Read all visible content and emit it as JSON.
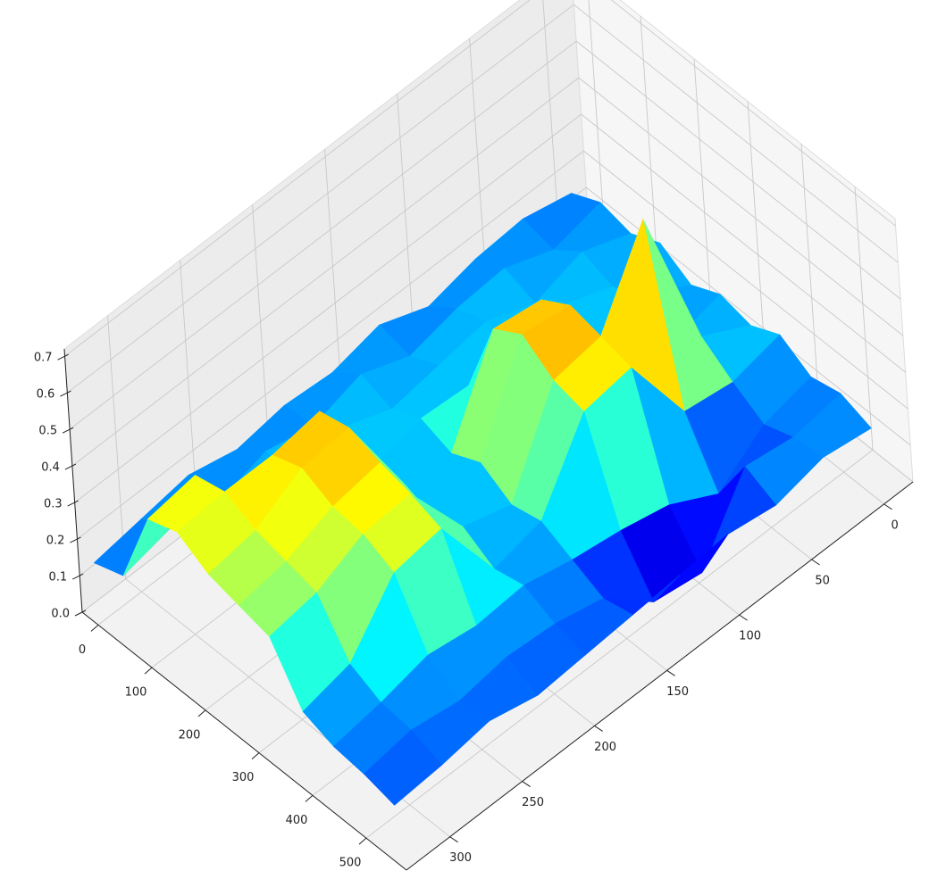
{
  "chart_data": {
    "type": "surface3d",
    "colormap": "jet",
    "x": [
      0,
      56,
      112,
      168,
      224,
      280,
      336,
      392,
      448,
      504,
      560
    ],
    "y": [
      0,
      33,
      66,
      99,
      132,
      165,
      198,
      231,
      264,
      297,
      330
    ],
    "z": [
      [
        0.18,
        0.22,
        0.2,
        0.24,
        0.19,
        0.23,
        0.21,
        0.25,
        0.2,
        0.22,
        0.19
      ],
      [
        0.21,
        0.19,
        0.25,
        0.22,
        0.26,
        0.2,
        0.28,
        0.22,
        0.17,
        0.2,
        0.21
      ],
      [
        0.2,
        0.24,
        0.21,
        0.27,
        0.22,
        0.25,
        0.7,
        0.24,
        0.08,
        0.22,
        0.18
      ],
      [
        0.17,
        0.23,
        0.26,
        0.22,
        0.45,
        0.5,
        0.48,
        0.46,
        0.15,
        0.03,
        0.2
      ],
      [
        0.22,
        0.2,
        0.24,
        0.25,
        0.47,
        0.52,
        0.46,
        0.44,
        0.18,
        0.05,
        0.19
      ],
      [
        0.19,
        0.25,
        0.22,
        0.26,
        0.23,
        0.27,
        0.22,
        0.24,
        0.2,
        0.16,
        0.18
      ],
      [
        0.2,
        0.21,
        0.27,
        0.23,
        0.25,
        0.22,
        0.26,
        0.21,
        0.23,
        0.19,
        0.17
      ],
      [
        0.18,
        0.24,
        0.22,
        0.48,
        0.5,
        0.47,
        0.45,
        0.42,
        0.22,
        0.2,
        0.16
      ],
      [
        0.21,
        0.2,
        0.25,
        0.46,
        0.49,
        0.45,
        0.44,
        0.4,
        0.24,
        0.18,
        0.19
      ],
      [
        0.19,
        0.23,
        0.44,
        0.46,
        0.42,
        0.4,
        0.38,
        0.25,
        0.21,
        0.2,
        0.17
      ],
      [
        0.17,
        0.2,
        0.42,
        0.45,
        0.4,
        0.38,
        0.36,
        0.22,
        0.19,
        0.18,
        0.16
      ]
    ],
    "xlim": [
      -30,
      575
    ],
    "ylim": [
      -20,
      330
    ],
    "zlim": [
      0,
      0.72
    ],
    "xticks": [
      0,
      100,
      200,
      300,
      400,
      500
    ],
    "yticks": [
      0,
      50,
      100,
      150,
      200,
      250,
      300
    ],
    "zticks": [
      {
        "value": 0,
        "label": "0.0"
      },
      0.1,
      0.2,
      0.3,
      0.4,
      0.5,
      0.6,
      0.7
    ],
    "grid": true
  }
}
